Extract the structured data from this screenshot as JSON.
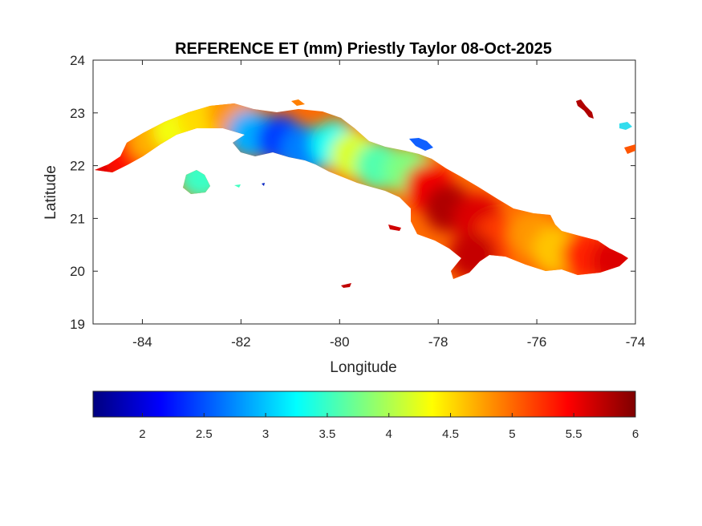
{
  "chart_data": {
    "type": "heatmap",
    "title": "REFERENCE ET (mm) Priestly Taylor 08-Oct-2025",
    "xlabel": "Longitude",
    "ylabel": "Latitude",
    "xlim": [
      -85,
      -74
    ],
    "ylim": [
      19,
      24
    ],
    "x_ticks": [
      -84,
      -82,
      -80,
      -78,
      -76,
      -74
    ],
    "y_ticks": [
      19,
      20,
      21,
      22,
      23,
      24
    ],
    "colorbar": {
      "colormap": "jet",
      "range": [
        1.6,
        6
      ],
      "ticks": [
        2,
        2.5,
        3,
        3.5,
        4,
        4.5,
        5,
        5.5,
        6
      ],
      "placement": "bottom"
    },
    "colormap_stops": [
      "#00007f",
      "#0000ff",
      "#007fff",
      "#00ffff",
      "#7fff7f",
      "#ffff00",
      "#ff7f00",
      "#ff0000",
      "#7f0000"
    ],
    "regions": [
      {
        "lon": -84.9,
        "lat": 21.9,
        "value": 5.6
      },
      {
        "lon": -84.3,
        "lat": 22.2,
        "value": 5.4
      },
      {
        "lon": -83.8,
        "lat": 22.5,
        "value": 4.7
      },
      {
        "lon": -83.3,
        "lat": 22.7,
        "value": 4.3
      },
      {
        "lon": -82.8,
        "lat": 22.9,
        "value": 4.5
      },
      {
        "lon": -82.2,
        "lat": 23.0,
        "value": 4.8
      },
      {
        "lon": -82.8,
        "lat": 21.8,
        "value": 3.5
      },
      {
        "lon": -81.8,
        "lat": 22.6,
        "value": 2.9
      },
      {
        "lon": -81.2,
        "lat": 22.5,
        "value": 2.4
      },
      {
        "lon": -80.7,
        "lat": 22.3,
        "value": 2.7
      },
      {
        "lon": -80.1,
        "lat": 22.4,
        "value": 3.3
      },
      {
        "lon": -79.7,
        "lat": 22.2,
        "value": 4.2
      },
      {
        "lon": -79.2,
        "lat": 22.0,
        "value": 3.6
      },
      {
        "lon": -78.6,
        "lat": 21.9,
        "value": 3.8
      },
      {
        "lon": -78.2,
        "lat": 21.6,
        "value": 5.5
      },
      {
        "lon": -77.8,
        "lat": 21.2,
        "value": 5.8
      },
      {
        "lon": -77.2,
        "lat": 21.0,
        "value": 5.6
      },
      {
        "lon": -76.8,
        "lat": 20.6,
        "value": 5.2
      },
      {
        "lon": -77.3,
        "lat": 20.3,
        "value": 5.7
      },
      {
        "lon": -76.1,
        "lat": 20.7,
        "value": 4.8
      },
      {
        "lon": -75.6,
        "lat": 20.4,
        "value": 4.6
      },
      {
        "lon": -75.0,
        "lat": 20.3,
        "value": 5.3
      },
      {
        "lon": -74.4,
        "lat": 20.2,
        "value": 5.6
      }
    ]
  }
}
